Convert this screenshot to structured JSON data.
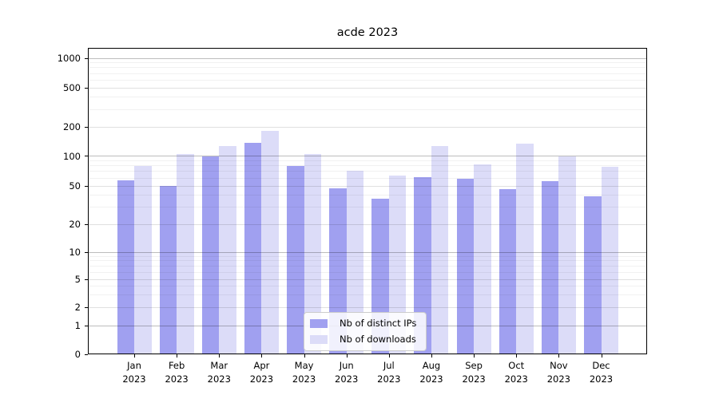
{
  "figure": {
    "title": "acde 2023"
  },
  "chart_data": {
    "type": "bar",
    "title": "acde 2023",
    "yscale": "symlog",
    "grid": true,
    "legend_position": "lower center",
    "categories": [
      "Jan",
      "Feb",
      "Mar",
      "Apr",
      "May",
      "Jun",
      "Jul",
      "Aug",
      "Sep",
      "Oct",
      "Nov",
      "Dec"
    ],
    "year_label": "2023",
    "series": [
      {
        "name": "Nb of distinct IPs",
        "color": "#a0a0f0",
        "values": [
          57,
          50,
          99,
          138,
          80,
          47,
          37,
          61,
          59,
          46,
          56,
          39
        ]
      },
      {
        "name": "Nb of downloads",
        "color": "#dcdcf8",
        "values": [
          80,
          104,
          126,
          183,
          105,
          71,
          63,
          126,
          82,
          134,
          100,
          78
        ]
      }
    ],
    "yticks": [
      0,
      1,
      2,
      5,
      10,
      20,
      50,
      100,
      200,
      500,
      1000
    ],
    "minor_yticks": [
      3,
      4,
      6,
      7,
      8,
      9,
      30,
      40,
      60,
      70,
      80,
      90,
      300,
      400,
      600,
      700,
      800,
      900
    ],
    "ylim": [
      0,
      1280
    ]
  }
}
